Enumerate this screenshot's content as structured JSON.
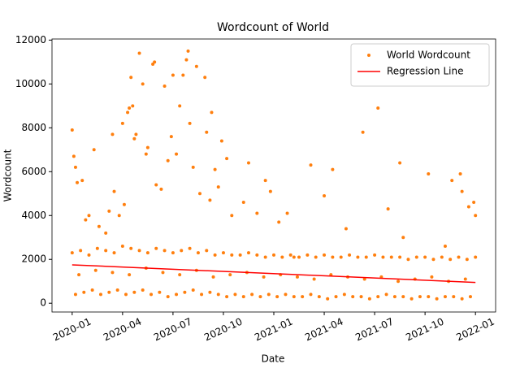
{
  "chart_data": {
    "type": "scatter",
    "title": "Wordcount of World",
    "x_label": "Date",
    "y_label": "Wordcount",
    "xlim": [
      -1.2,
      25.2
    ],
    "ylim": [
      -400,
      12050
    ],
    "xticks": [
      {
        "value": 0,
        "label": "2020-01"
      },
      {
        "value": 3,
        "label": "2020-04"
      },
      {
        "value": 6,
        "label": "2020-07"
      },
      {
        "value": 9,
        "label": "2020-10"
      },
      {
        "value": 12,
        "label": "2021-01"
      },
      {
        "value": 15,
        "label": "2021-04"
      },
      {
        "value": 18,
        "label": "2021-07"
      },
      {
        "value": 21,
        "label": "2021-10"
      },
      {
        "value": 24,
        "label": "2022-01"
      }
    ],
    "yticks": [
      0,
      2000,
      4000,
      6000,
      8000,
      10000,
      12000
    ],
    "legend": "upper right",
    "series": [
      {
        "name": "World Wordcount",
        "type": "scatter",
        "color": "#ff7f0e",
        "x": [
          0.0,
          0.1,
          0.2,
          0.3,
          0.6,
          0.8,
          1.0,
          1.3,
          1.6,
          2.0,
          2.2,
          2.4,
          2.5,
          2.8,
          3.0,
          3.1,
          3.3,
          3.4,
          3.5,
          3.6,
          3.7,
          3.8,
          4.0,
          4.2,
          4.4,
          4.5,
          4.8,
          4.9,
          5.0,
          5.3,
          5.5,
          5.7,
          5.9,
          6.0,
          6.2,
          6.4,
          6.6,
          6.8,
          6.9,
          7.0,
          7.2,
          7.4,
          7.6,
          7.9,
          8.0,
          8.2,
          8.3,
          8.5,
          8.7,
          8.9,
          9.2,
          9.5,
          10.2,
          10.5,
          11.0,
          11.5,
          11.8,
          12.3,
          12.8,
          13.2,
          14.2,
          15.0,
          15.5,
          16.3,
          17.3,
          18.2,
          18.8,
          19.5,
          19.7,
          21.2,
          22.2,
          22.6,
          23.1,
          23.2,
          23.6,
          23.9,
          24.0,
          0.0,
          0.5,
          1.0,
          1.5,
          2.0,
          2.5,
          3.0,
          3.5,
          4.0,
          4.5,
          5.0,
          5.5,
          6.0,
          6.5,
          7.0,
          7.5,
          8.0,
          8.5,
          9.0,
          9.5,
          10.0,
          10.5,
          11.0,
          11.5,
          12.0,
          12.5,
          13.0,
          13.5,
          14.0,
          14.5,
          15.0,
          15.5,
          16.0,
          16.5,
          17.0,
          17.5,
          18.0,
          18.5,
          19.0,
          19.5,
          20.0,
          20.5,
          21.0,
          21.5,
          22.0,
          22.5,
          23.0,
          23.5,
          24.0,
          0.2,
          0.7,
          1.2,
          1.7,
          2.2,
          2.7,
          3.2,
          3.7,
          4.2,
          4.7,
          5.2,
          5.7,
          6.2,
          6.7,
          7.2,
          7.7,
          8.2,
          8.7,
          9.2,
          9.7,
          10.2,
          10.7,
          11.2,
          11.7,
          12.2,
          12.7,
          13.2,
          13.7,
          14.2,
          14.7,
          15.2,
          15.7,
          16.2,
          16.7,
          17.2,
          17.7,
          18.2,
          18.7,
          19.2,
          19.7,
          20.2,
          20.7,
          21.2,
          21.7,
          22.2,
          22.7,
          23.2,
          23.7,
          0.4,
          1.4,
          2.4,
          3.4,
          4.4,
          5.4,
          6.4,
          7.4,
          8.4,
          9.4,
          10.4,
          11.4,
          12.4,
          13.4,
          14.4,
          15.4,
          16.4,
          17.4,
          18.4,
          19.4,
          20.4,
          21.4,
          22.4,
          23.4
        ],
        "values": [
          7900,
          6700,
          6200,
          5500,
          5600,
          3800,
          4000,
          7000,
          3500,
          3200,
          4200,
          7700,
          5100,
          4000,
          8200,
          4500,
          8700,
          8900,
          10300,
          9000,
          7500,
          7700,
          11400,
          10000,
          6800,
          7100,
          10900,
          11000,
          5400,
          5200,
          9900,
          6500,
          7600,
          10400,
          6800,
          9000,
          10400,
          11100,
          11500,
          8200,
          6200,
          10800,
          5000,
          10300,
          7800,
          4700,
          8700,
          6100,
          5300,
          7400,
          6600,
          4000,
          4600,
          6400,
          4100,
          5600,
          5100,
          3700,
          4100,
          2100,
          6300,
          4900,
          6100,
          3400,
          7800,
          8900,
          4300,
          6400,
          3000,
          5900,
          2600,
          5600,
          5900,
          5100,
          4400,
          4600,
          4000,
          2300,
          2400,
          2200,
          2500,
          2400,
          2300,
          2600,
          2500,
          2400,
          2300,
          2500,
          2400,
          2300,
          2400,
          2500,
          2300,
          2400,
          2200,
          2300,
          2200,
          2200,
          2300,
          2200,
          2100,
          2200,
          2100,
          2200,
          2100,
          2200,
          2100,
          2200,
          2100,
          2100,
          2200,
          2100,
          2100,
          2200,
          2100,
          2100,
          2100,
          2000,
          2100,
          2100,
          2000,
          2100,
          2000,
          2100,
          2000,
          2100,
          400,
          500,
          600,
          400,
          500,
          600,
          400,
          500,
          600,
          400,
          500,
          300,
          400,
          500,
          600,
          400,
          500,
          400,
          300,
          400,
          300,
          400,
          300,
          400,
          300,
          400,
          300,
          300,
          400,
          300,
          200,
          300,
          400,
          300,
          300,
          200,
          300,
          400,
          300,
          300,
          200,
          300,
          300,
          200,
          300,
          300,
          200,
          300,
          1300,
          1500,
          1400,
          1300,
          1600,
          1400,
          1300,
          1500,
          1200,
          1300,
          1400,
          1200,
          1300,
          1200,
          1100,
          1300,
          1200,
          1100,
          1200,
          1000,
          1100,
          1200,
          1000,
          1100
        ]
      },
      {
        "name": "Regression Line",
        "type": "line",
        "color": "#ff0000",
        "x": [
          0,
          24
        ],
        "values": [
          1750,
          950
        ]
      }
    ]
  }
}
